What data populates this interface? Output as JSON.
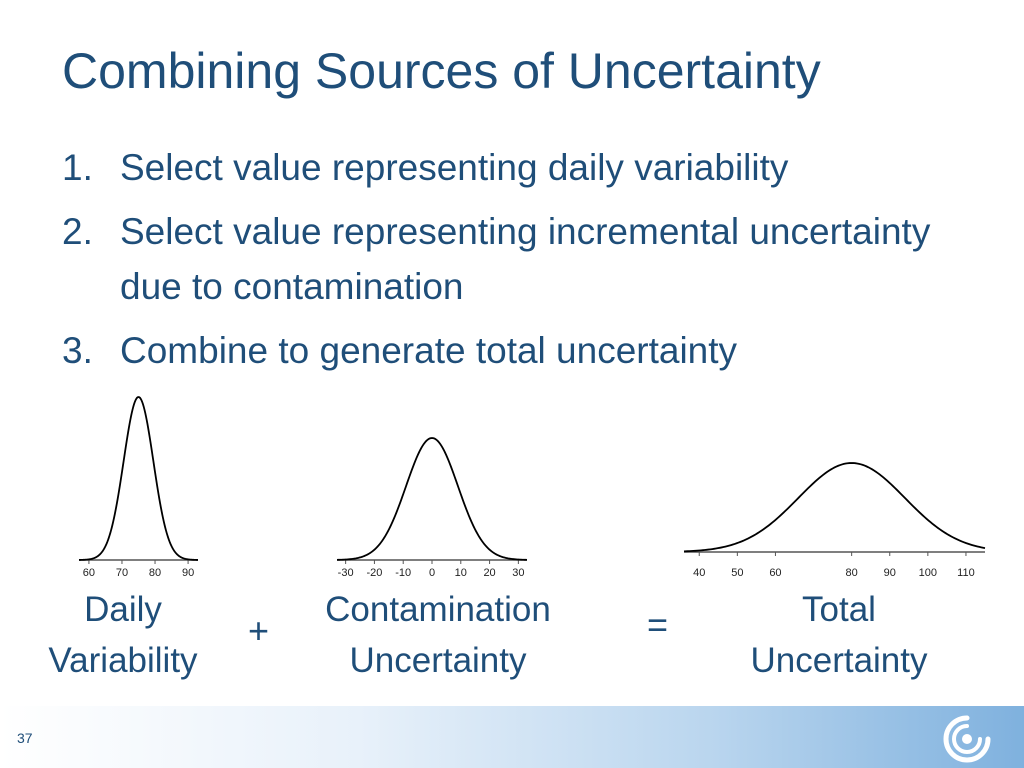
{
  "slide": {
    "title": "Combining Sources of Uncertainty",
    "steps": [
      {
        "num": "1.",
        "text": "Select value representing daily variability"
      },
      {
        "num": "2.",
        "text": " Select value representing incremental uncertainty due to contamination"
      },
      {
        "num": "3.",
        "text": "Combine to generate total uncertainty"
      }
    ],
    "operators": {
      "plus": "+",
      "equals": "="
    },
    "labels": {
      "daily": {
        "line1": "Daily",
        "line2": "Variability"
      },
      "contamination": {
        "line1": "Contamination",
        "line2": "Uncertainty"
      },
      "total": {
        "line1": "Total",
        "line2": "Uncertainty"
      }
    },
    "page_number": "37",
    "colors": {
      "text": "#1f4e79",
      "curve": "#000000",
      "footer_accent": "#7fb1de"
    },
    "logo_icon": "swirl-logo-icon"
  },
  "chart_data": [
    {
      "type": "line",
      "curve": "normal",
      "mean": 75,
      "sd": 4.5,
      "xlim": [
        57,
        93
      ],
      "x_ticks": [
        60,
        70,
        80,
        90
      ],
      "tick_labels": [
        "60",
        "70",
        "80",
        "90"
      ],
      "title": "",
      "xlabel": "",
      "ylabel": ""
    },
    {
      "type": "line",
      "curve": "normal",
      "mean": 0,
      "sd": 9,
      "xlim": [
        -33,
        33
      ],
      "x_ticks": [
        -30,
        -20,
        -10,
        0,
        10,
        20,
        30
      ],
      "tick_labels": [
        "-30",
        "-20",
        "-10",
        "0",
        "10",
        "20",
        "30"
      ],
      "title": "",
      "xlabel": "",
      "ylabel": ""
    },
    {
      "type": "line",
      "curve": "normal",
      "mean": 80,
      "sd": 14,
      "xlim": [
        36,
        115
      ],
      "x_ticks": [
        40,
        50,
        60,
        80,
        90,
        100,
        110
      ],
      "tick_labels": [
        "40",
        "50",
        "60",
        "80",
        "90",
        "100",
        "110"
      ],
      "title": "",
      "xlabel": "",
      "ylabel": ""
    }
  ]
}
